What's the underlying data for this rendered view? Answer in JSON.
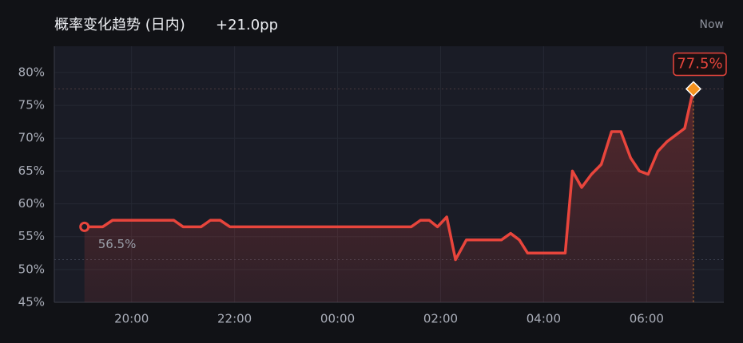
{
  "chart_data": {
    "type": "line",
    "title": "概率变化趋势 (日内)",
    "subtitle": "+21.0pp",
    "now_label": "Now",
    "x": [
      19.085,
      19.44,
      19.63,
      20.82,
      21.0,
      21.35,
      21.53,
      21.72,
      21.91,
      25.43,
      25.61,
      25.78,
      25.94,
      26.12,
      26.29,
      26.5,
      27.18,
      27.36,
      27.53,
      27.69,
      28.42,
      28.56,
      28.74,
      28.93,
      29.12,
      29.32,
      29.5,
      29.69,
      29.86,
      30.03,
      30.22,
      30.4,
      30.57,
      30.74,
      30.91
    ],
    "series": [
      {
        "name": "概率",
        "color": "#e8453c",
        "values": [
          56.5,
          56.5,
          57.5,
          57.5,
          56.5,
          56.5,
          57.5,
          57.5,
          56.5,
          56.5,
          57.5,
          57.5,
          56.5,
          58,
          51.5,
          54.5,
          54.5,
          55.5,
          54.5,
          52.5,
          52.5,
          65,
          62.5,
          64.5,
          66,
          71,
          71,
          67,
          65,
          64.5,
          68,
          69.5,
          70.5,
          71.5,
          77.5
        ],
        "value_labels": [
          "56.5%",
          null,
          null,
          null,
          null,
          null,
          null,
          null,
          null,
          null,
          null,
          null,
          null,
          null,
          null,
          null,
          null,
          null,
          null,
          null,
          null,
          null,
          null,
          null,
          null,
          null,
          null,
          null,
          null,
          null,
          null,
          null,
          null,
          null,
          "77.5%"
        ]
      }
    ],
    "xlim": [
      18.5,
      31.5
    ],
    "xticks": [
      {
        "value": 20,
        "label": "20:00"
      },
      {
        "value": 22,
        "label": "22:00"
      },
      {
        "value": 24,
        "label": "00:00"
      },
      {
        "value": 26,
        "label": "02:00"
      },
      {
        "value": 28,
        "label": "04:00"
      },
      {
        "value": 30,
        "label": "06:00"
      }
    ],
    "ylim": [
      45,
      84
    ],
    "yticks": [
      {
        "value": 45,
        "label": "45%"
      },
      {
        "value": 50,
        "label": "50%"
      },
      {
        "value": 55,
        "label": "55%"
      },
      {
        "value": 60,
        "label": "60%"
      },
      {
        "value": 65,
        "label": "65%"
      },
      {
        "value": 70,
        "label": "70%"
      },
      {
        "value": 75,
        "label": "75%"
      },
      {
        "value": 80,
        "label": "80%"
      }
    ],
    "grid": true
  }
}
